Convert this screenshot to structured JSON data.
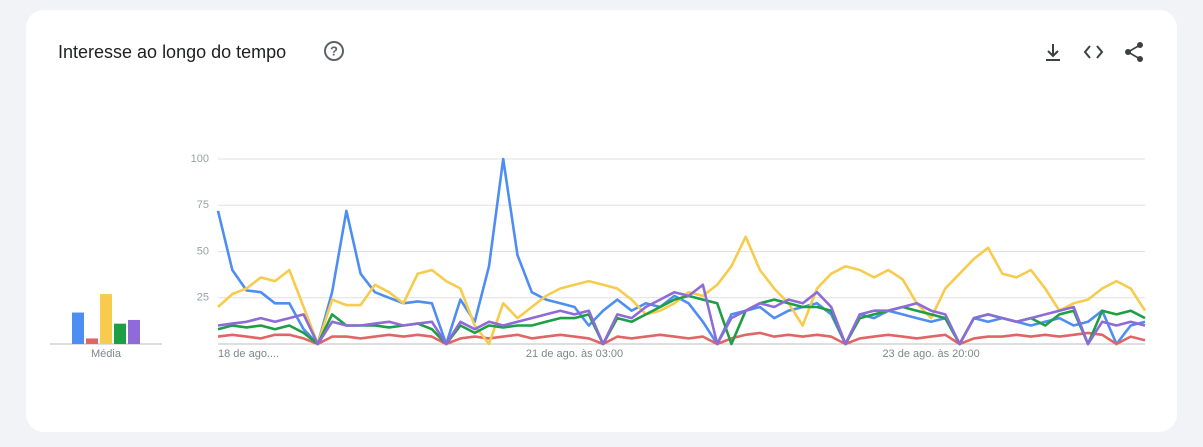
{
  "header": {
    "title": "Interesse ao longo do tempo"
  },
  "chart_data": [
    {
      "type": "line",
      "categories": [
        "18 de ago....",
        null,
        null,
        null,
        null,
        null,
        null,
        null,
        null,
        null,
        null,
        null,
        null,
        null,
        null,
        null,
        null,
        null,
        null,
        null,
        null,
        null,
        null,
        null,
        null,
        "21 de ago. às 03:00",
        null,
        null,
        null,
        null,
        null,
        null,
        null,
        null,
        null,
        null,
        null,
        null,
        null,
        null,
        null,
        null,
        null,
        null,
        null,
        null,
        null,
        null,
        null,
        null,
        "23 de ago. às 20:00",
        null,
        null,
        null,
        null,
        null,
        null,
        null,
        null,
        null,
        null,
        null,
        null,
        null,
        null,
        null
      ],
      "ylim": [
        0,
        100
      ],
      "yticks": [
        25,
        50,
        75,
        100
      ],
      "grid": true,
      "series": [
        {
          "color": "#4e8ef2",
          "values": [
            72,
            40,
            29,
            28,
            22,
            22,
            8,
            0,
            28,
            72,
            38,
            28,
            25,
            22,
            23,
            22,
            0,
            24,
            12,
            42,
            100,
            48,
            28,
            24,
            22,
            20,
            10,
            18,
            24,
            18,
            22,
            20,
            26,
            22,
            12,
            0,
            16,
            18,
            20,
            14,
            18,
            20,
            22,
            16,
            0,
            16,
            14,
            18,
            16,
            14,
            12,
            14,
            0,
            14,
            12,
            14,
            12,
            10,
            12,
            14,
            10,
            12,
            18,
            0,
            10,
            12
          ]
        },
        {
          "color": "#e06666",
          "values": [
            4,
            5,
            4,
            3,
            5,
            5,
            3,
            0,
            4,
            4,
            3,
            4,
            5,
            4,
            5,
            4,
            0,
            3,
            4,
            3,
            4,
            5,
            3,
            4,
            5,
            4,
            3,
            0,
            4,
            3,
            4,
            5,
            4,
            3,
            4,
            0,
            3,
            5,
            6,
            4,
            5,
            4,
            5,
            4,
            0,
            3,
            4,
            5,
            4,
            3,
            4,
            5,
            0,
            3,
            4,
            4,
            5,
            4,
            5,
            4,
            5,
            6,
            5,
            0,
            4,
            2
          ]
        },
        {
          "color": "#f7cb4d",
          "values": [
            20,
            27,
            30,
            36,
            34,
            40,
            20,
            0,
            24,
            21,
            21,
            32,
            28,
            22,
            38,
            40,
            34,
            30,
            10,
            0,
            22,
            14,
            20,
            26,
            30,
            32,
            34,
            32,
            30,
            24,
            16,
            18,
            22,
            28,
            26,
            32,
            42,
            58,
            40,
            30,
            22,
            10,
            30,
            38,
            42,
            40,
            36,
            40,
            35,
            22,
            14,
            30,
            38,
            46,
            52,
            38,
            36,
            40,
            30,
            18,
            22,
            24,
            30,
            34,
            30,
            18
          ]
        },
        {
          "color": "#1e9e45",
          "values": [
            8,
            10,
            9,
            10,
            8,
            10,
            6,
            0,
            16,
            10,
            10,
            10,
            9,
            10,
            11,
            8,
            0,
            10,
            6,
            10,
            9,
            10,
            10,
            12,
            14,
            14,
            16,
            0,
            14,
            12,
            16,
            20,
            24,
            26,
            24,
            22,
            0,
            18,
            22,
            24,
            22,
            20,
            20,
            18,
            0,
            14,
            16,
            18,
            20,
            18,
            16,
            14,
            0,
            14,
            16,
            14,
            12,
            14,
            10,
            16,
            18,
            0,
            18,
            16,
            18,
            14
          ]
        },
        {
          "color": "#8e6bd8",
          "values": [
            10,
            11,
            12,
            14,
            12,
            14,
            16,
            0,
            12,
            10,
            10,
            11,
            12,
            10,
            11,
            12,
            0,
            12,
            8,
            12,
            10,
            12,
            14,
            16,
            18,
            16,
            18,
            0,
            16,
            14,
            20,
            24,
            28,
            26,
            32,
            0,
            14,
            18,
            22,
            20,
            24,
            22,
            28,
            20,
            0,
            16,
            18,
            18,
            20,
            22,
            18,
            16,
            0,
            14,
            16,
            14,
            12,
            14,
            16,
            18,
            20,
            0,
            12,
            10,
            12,
            10
          ]
        }
      ]
    },
    {
      "type": "bar",
      "categories": [
        "Média"
      ],
      "ylim": [
        0,
        100
      ],
      "series": [
        {
          "color": "#4e8ef2",
          "values": [
            17
          ]
        },
        {
          "color": "#e06666",
          "values": [
            3
          ]
        },
        {
          "color": "#f7cb4d",
          "values": [
            27
          ]
        },
        {
          "color": "#1e9e45",
          "values": [
            11
          ]
        },
        {
          "color": "#8e6bd8",
          "values": [
            13
          ]
        }
      ]
    }
  ]
}
